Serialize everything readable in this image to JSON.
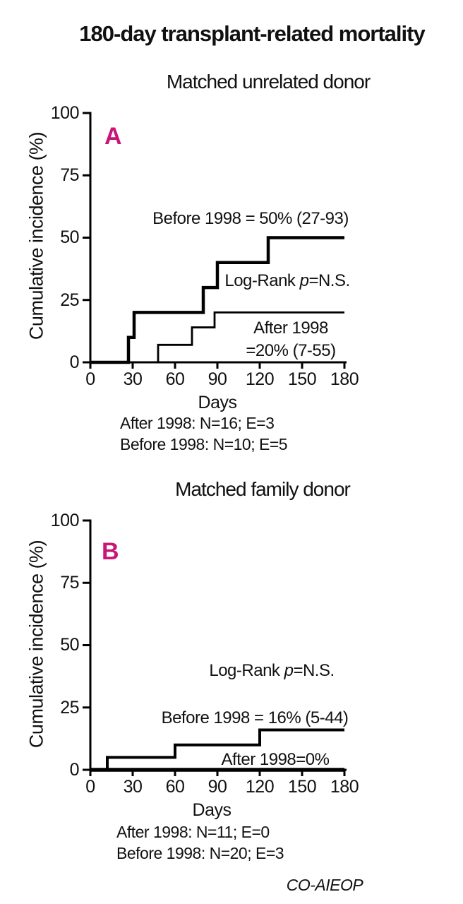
{
  "title": "180-day transplant-related mortality",
  "footer": "CO-AIEOP",
  "accent_color": "#C81578",
  "panels": [
    {
      "label": "A",
      "subtitle": "Matched unrelated donor",
      "ylabel": "Cumulative incidence (%)",
      "xlabel": "Days",
      "yticks": [
        0,
        25,
        50,
        75,
        100
      ],
      "xticks": [
        0,
        30,
        60,
        90,
        120,
        150,
        180
      ],
      "annotations": {
        "before": "Before 1998 = 50% (27-93)",
        "logrank_prefix": "Log-Rank ",
        "logrank_p": "p",
        "logrank_suffix": "=N.S.",
        "after_line1": "After 1998",
        "after_line2": "=20% (7-55)"
      },
      "stats": [
        "After 1998: N=16; E=3",
        "Before 1998: N=10; E=5"
      ]
    },
    {
      "label": "B",
      "subtitle": "Matched family donor",
      "ylabel": "Cumulative incidence (%)",
      "xlabel": "Days",
      "yticks": [
        0,
        25,
        50,
        75,
        100
      ],
      "xticks": [
        0,
        30,
        60,
        90,
        120,
        150,
        180
      ],
      "annotations": {
        "logrank_prefix": "Log-Rank ",
        "logrank_p": "p",
        "logrank_suffix": "=N.S.",
        "before": "Before 1998 = 16% (5-44)",
        "after": "After 1998=0%"
      },
      "stats": [
        "After 1998: N=11; E=0",
        "Before 1998: N=20; E=3"
      ]
    }
  ],
  "chart_data": [
    {
      "panel": "A",
      "type": "line",
      "step": true,
      "title": "Matched unrelated donor",
      "xlabel": "Days",
      "ylabel": "Cumulative incidence (%)",
      "xlim": [
        0,
        180
      ],
      "ylim": [
        0,
        100
      ],
      "xticks": [
        0,
        30,
        60,
        90,
        120,
        150,
        180
      ],
      "yticks": [
        0,
        25,
        50,
        75,
        100
      ],
      "grid": false,
      "log_rank": "p=N.S.",
      "series": [
        {
          "name": "Before 1998",
          "estimate": "50% (27-93)",
          "n": 10,
          "events": 5,
          "points": [
            [
              0,
              0
            ],
            [
              27,
              0
            ],
            [
              27,
              10
            ],
            [
              31,
              10
            ],
            [
              31,
              20
            ],
            [
              80,
              20
            ],
            [
              80,
              30
            ],
            [
              90,
              30
            ],
            [
              90,
              40
            ],
            [
              126,
              40
            ],
            [
              126,
              50
            ],
            [
              180,
              50
            ]
          ]
        },
        {
          "name": "After 1998",
          "estimate": "20% (7-55)",
          "n": 16,
          "events": 3,
          "points": [
            [
              0,
              0
            ],
            [
              48,
              0
            ],
            [
              48,
              7
            ],
            [
              72,
              7
            ],
            [
              72,
              14
            ],
            [
              88,
              14
            ],
            [
              88,
              20
            ],
            [
              180,
              20
            ]
          ]
        }
      ]
    },
    {
      "panel": "B",
      "type": "line",
      "step": true,
      "title": "Matched family donor",
      "xlabel": "Days",
      "ylabel": "Cumulative incidence (%)",
      "xlim": [
        0,
        180
      ],
      "ylim": [
        0,
        100
      ],
      "xticks": [
        0,
        30,
        60,
        90,
        120,
        150,
        180
      ],
      "yticks": [
        0,
        25,
        50,
        75,
        100
      ],
      "grid": false,
      "log_rank": "p=N.S.",
      "series": [
        {
          "name": "Before 1998",
          "estimate": "16% (5-44)",
          "n": 20,
          "events": 3,
          "points": [
            [
              0,
              0
            ],
            [
              12,
              0
            ],
            [
              12,
              5
            ],
            [
              60,
              5
            ],
            [
              60,
              10
            ],
            [
              120,
              10
            ],
            [
              120,
              16
            ],
            [
              180,
              16
            ]
          ]
        },
        {
          "name": "After 1998",
          "estimate": "0%",
          "n": 11,
          "events": 0,
          "points": [
            [
              0,
              0
            ],
            [
              180,
              0
            ]
          ]
        }
      ]
    }
  ]
}
